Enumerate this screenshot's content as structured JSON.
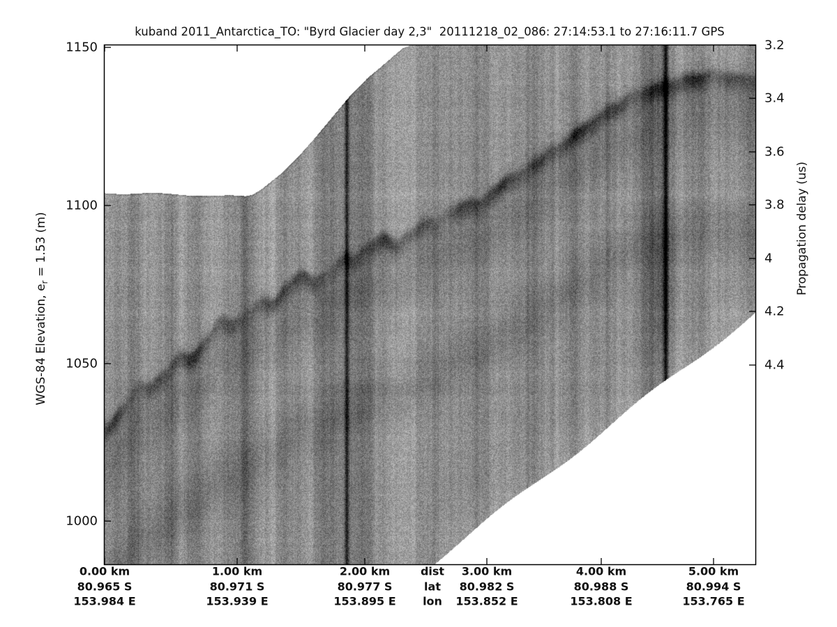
{
  "figure": {
    "title": "kuband 2011_Antarctica_TO: \"Byrd Glacier day 2,3\"  20111218_02_086: 27:14:53.1 to 27:16:11.7 GPS",
    "ylabel_left": {
      "pre": "WGS-84 Elevation, e",
      "sub": "r",
      "post": " = 1.53 (m)"
    },
    "ylabel_right": "Propagation delay (us)"
  },
  "chart_data": {
    "type": "heatmap",
    "subtype": "radar-echogram",
    "title": "kuband 2011_Antarctica_TO: \"Byrd Glacier day 2,3\"  20111218_02_086: 27:14:53.1 to 27:16:11.7 GPS",
    "grid": false,
    "legend": false,
    "y_axis_left": {
      "label": "WGS-84 Elevation, e_r = 1.53 (m)",
      "tick_labels": [
        "1150",
        "1100",
        "1050",
        "1000"
      ],
      "tick_values_m": [
        1150,
        1100,
        1050,
        1000
      ],
      "range_top_m": 1150,
      "range_bottom_m": 986
    },
    "y_axis_right": {
      "label": "Propagation delay (us)",
      "tick_labels": [
        "3.2",
        "3.4",
        "3.6",
        "3.8",
        "4",
        "4.2",
        "4.4"
      ],
      "tick_values_us": [
        3.2,
        3.4,
        3.6,
        3.8,
        4.0,
        4.2,
        4.4
      ]
    },
    "x_axis": {
      "row_headers": [
        "dist",
        "lat",
        "lon"
      ],
      "ticks": [
        {
          "dist": "0.00 km",
          "lat": "80.965 S",
          "lon": "153.984 E"
        },
        {
          "dist": "1.00 km",
          "lat": "80.971 S",
          "lon": "153.939 E"
        },
        {
          "dist": "2.00 km",
          "lat": "80.977 S",
          "lon": "153.895 E"
        },
        {
          "dist": "3.00 km",
          "lat": "80.982 S",
          "lon": "153.852 E"
        },
        {
          "dist": "4.00 km",
          "lat": "80.988 S",
          "lon": "153.808 E"
        },
        {
          "dist": "5.00 km",
          "lat": "80.994 S",
          "lon": "153.765 E"
        }
      ]
    },
    "surface_echo": {
      "at_km": [
        0,
        1,
        2,
        3,
        4,
        5
      ],
      "elevation_m": [
        1031,
        1066,
        1086,
        1104,
        1128,
        1141
      ]
    },
    "colors": {
      "background": "#ffffff",
      "data_mean_gray": "#959595",
      "echo_dark": "#3a3a3a",
      "axis": "#000000"
    },
    "features": [
      "speckled gray radar data swath with vertical striations",
      "dark wavy surface-echo band rising from lower-left (~1031 m) to upper-right (~1141 m)",
      "fainter parallel multiple-echo band ~48 m below the surface echo",
      "strong dark vertical stripe near 1.9 km",
      "strong dark vertical stripe near 4.4 km",
      "white no-data region above the swath at upper-left",
      "white no-data wedge below the swath at lower-right"
    ]
  }
}
